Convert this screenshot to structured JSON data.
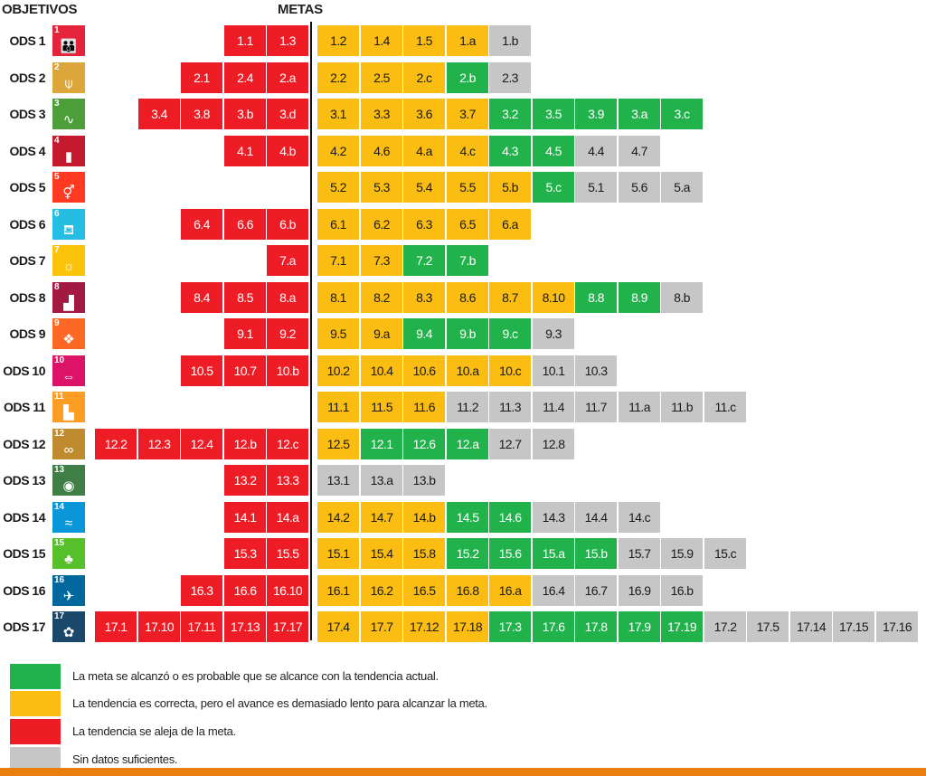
{
  "headers": {
    "objetivos": "OBJETIVOS",
    "metas": "METAS"
  },
  "colors": {
    "green": "#22b24c",
    "yellow": "#fbbd11",
    "red": "#ee1c24",
    "gray": "#c6c6c6"
  },
  "chart_data": {
    "type": "table",
    "rows": [
      {
        "label": "ODS 1",
        "icon_num": "1",
        "icon": "people-icon",
        "icon_color": "#e5243b",
        "red": [
          "1.1",
          "1.3"
        ],
        "yellow": [
          "1.2",
          "1.4",
          "1.5",
          "1.a"
        ],
        "green": [],
        "gray": [
          "1.b"
        ]
      },
      {
        "label": "ODS 2",
        "icon_num": "2",
        "icon": "bowl-icon",
        "icon_color": "#dda63a",
        "red": [
          "2.1",
          "2.4",
          "2.a"
        ],
        "yellow": [
          "2.2",
          "2.5",
          "2.c"
        ],
        "green": [
          "2.b"
        ],
        "gray": [
          "2.3"
        ]
      },
      {
        "label": "ODS 3",
        "icon_num": "3",
        "icon": "heartbeat-icon",
        "icon_color": "#4c9f38",
        "red": [
          "3.4",
          "3.8",
          "3.b",
          "3.d"
        ],
        "yellow": [
          "3.1",
          "3.3",
          "3.6",
          "3.7"
        ],
        "green": [
          "3.2",
          "3.5",
          "3.9",
          "3.a",
          "3.c"
        ],
        "gray": []
      },
      {
        "label": "ODS 4",
        "icon_num": "4",
        "icon": "book-icon",
        "icon_color": "#c5192d",
        "red": [
          "4.1",
          "4.b"
        ],
        "yellow": [
          "4.2",
          "4.6",
          "4.a",
          "4.c"
        ],
        "green": [
          "4.3",
          "4.5"
        ],
        "gray": [
          "4.4",
          "4.7"
        ]
      },
      {
        "label": "ODS 5",
        "icon_num": "5",
        "icon": "gender-icon",
        "icon_color": "#ff3a21",
        "red": [],
        "yellow": [
          "5.2",
          "5.3",
          "5.4",
          "5.5",
          "5.b"
        ],
        "green": [
          "5.c"
        ],
        "gray": [
          "5.1",
          "5.6",
          "5.a"
        ]
      },
      {
        "label": "ODS 6",
        "icon_num": "6",
        "icon": "water-drop-icon",
        "icon_color": "#26bde2",
        "red": [
          "6.4",
          "6.6",
          "6.b"
        ],
        "yellow": [
          "6.1",
          "6.2",
          "6.3",
          "6.5",
          "6.a"
        ],
        "green": [],
        "gray": []
      },
      {
        "label": "ODS 7",
        "icon_num": "7",
        "icon": "sun-icon",
        "icon_color": "#fcc30b",
        "red": [
          "7.a"
        ],
        "yellow": [
          "7.1",
          "7.3"
        ],
        "green": [
          "7.2",
          "7.b"
        ],
        "gray": []
      },
      {
        "label": "ODS 8",
        "icon_num": "8",
        "icon": "growth-chart-icon",
        "icon_color": "#a21942",
        "red": [
          "8.4",
          "8.5",
          "8.a"
        ],
        "yellow": [
          "8.1",
          "8.2",
          "8.3",
          "8.6",
          "8.7",
          "8.10"
        ],
        "green": [
          "8.8",
          "8.9"
        ],
        "gray": [
          "8.b"
        ]
      },
      {
        "label": "ODS 9",
        "icon_num": "9",
        "icon": "cubes-icon",
        "icon_color": "#fd6925",
        "red": [
          "9.1",
          "9.2"
        ],
        "yellow": [
          "9.5",
          "9.a"
        ],
        "green": [
          "9.4",
          "9.b",
          "9.c"
        ],
        "gray": [
          "9.3"
        ]
      },
      {
        "label": "ODS 10",
        "icon_num": "10",
        "icon": "equality-icon",
        "icon_color": "#dd1367",
        "red": [
          "10.5",
          "10.7",
          "10.b"
        ],
        "yellow": [
          "10.2",
          "10.4",
          "10.6",
          "10.a",
          "10.c"
        ],
        "green": [],
        "gray": [
          "10.1",
          "10.3"
        ]
      },
      {
        "label": "ODS 11",
        "icon_num": "11",
        "icon": "city-icon",
        "icon_color": "#fd9d24",
        "red": [],
        "yellow": [
          "11.1",
          "11.5",
          "11.6"
        ],
        "green": [],
        "gray": [
          "11.2",
          "11.3",
          "11.4",
          "11.7",
          "11.a",
          "11.b",
          "11.c"
        ]
      },
      {
        "label": "ODS 12",
        "icon_num": "12",
        "icon": "infinity-icon",
        "icon_color": "#bf8b2e",
        "red": [
          "12.2",
          "12.3",
          "12.4",
          "12.b",
          "12.c"
        ],
        "yellow": [
          "12.5"
        ],
        "green": [
          "12.1",
          "12.6",
          "12.a"
        ],
        "gray": [
          "12.7",
          "12.8"
        ]
      },
      {
        "label": "ODS 13",
        "icon_num": "13",
        "icon": "eye-globe-icon",
        "icon_color": "#3f7e44",
        "red": [
          "13.2",
          "13.3"
        ],
        "yellow": [],
        "green": [],
        "gray": [
          "13.1",
          "13.a",
          "13.b"
        ]
      },
      {
        "label": "ODS 14",
        "icon_num": "14",
        "icon": "fish-icon",
        "icon_color": "#0a97d9",
        "red": [
          "14.1",
          "14.a"
        ],
        "yellow": [
          "14.2",
          "14.7",
          "14.b"
        ],
        "green": [
          "14.5",
          "14.6"
        ],
        "gray": [
          "14.3",
          "14.4",
          "14.c"
        ]
      },
      {
        "label": "ODS 15",
        "icon_num": "15",
        "icon": "tree-icon",
        "icon_color": "#56c02b",
        "red": [
          "15.3",
          "15.5"
        ],
        "yellow": [
          "15.1",
          "15.4",
          "15.8"
        ],
        "green": [
          "15.2",
          "15.6",
          "15.a",
          "15.b"
        ],
        "gray": [
          "15.7",
          "15.9",
          "15.c"
        ]
      },
      {
        "label": "ODS 16",
        "icon_num": "16",
        "icon": "dove-icon",
        "icon_color": "#00689d",
        "red": [
          "16.3",
          "16.6",
          "16.10"
        ],
        "yellow": [
          "16.1",
          "16.2",
          "16.5",
          "16.8",
          "16.a"
        ],
        "green": [],
        "gray": [
          "16.4",
          "16.7",
          "16.9",
          "16.b"
        ]
      },
      {
        "label": "ODS 17",
        "icon_num": "17",
        "icon": "flower-icon",
        "icon_color": "#19486a",
        "red": [
          "17.1",
          "17.10",
          "17.11",
          "17.13",
          "17.17"
        ],
        "yellow": [
          "17.4",
          "17.7",
          "17.12",
          "17.18"
        ],
        "green": [
          "17.3",
          "17.6",
          "17.8",
          "17.9",
          "17.19"
        ],
        "gray": [
          "17.2",
          "17.5",
          "17.14",
          "17.15",
          "17.16"
        ]
      }
    ],
    "legend": [
      {
        "status": "green",
        "label": "La meta se alcanzó o es probable que se alcance con la tendencia actual."
      },
      {
        "status": "yellow",
        "label": "La tendencia es correcta, pero el avance es demasiado lento para alcanzar la meta."
      },
      {
        "status": "red",
        "label": "La tendencia se aleja de la meta."
      },
      {
        "status": "gray",
        "label": "Sin datos suficientes."
      }
    ]
  }
}
